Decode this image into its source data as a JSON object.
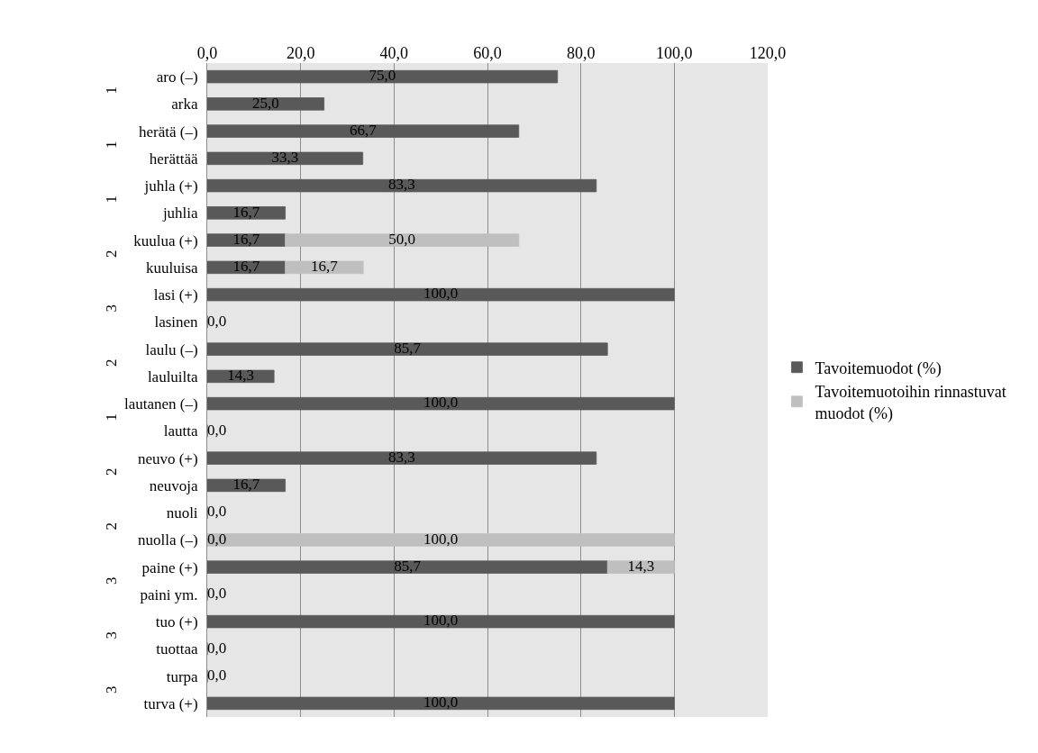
{
  "chart_data": {
    "type": "bar",
    "orientation": "horizontal",
    "stacked": true,
    "categories": [
      "aro (–)",
      "arka",
      "herätä (–)",
      "herättää",
      "juhla (+)",
      "juhlia",
      "kuulua (+)",
      "kuuluisa",
      "lasi (+)",
      "lasinen",
      "laulu (–)",
      "lauluilta",
      "lautanen (–)",
      "lautta",
      "neuvo (+)",
      "neuvoja",
      "nuoli",
      "nuolla (–)",
      "paine (+)",
      "paini ym.",
      "tuo (+)",
      "tuottaa",
      "turpa",
      "turva (+)"
    ],
    "series": [
      {
        "name": "Tavoitemuodot (%)",
        "color": "#595959",
        "values": [
          75.0,
          25.0,
          66.7,
          33.3,
          83.3,
          16.7,
          16.7,
          16.7,
          100.0,
          0.0,
          85.7,
          14.3,
          100.0,
          0.0,
          83.3,
          16.7,
          0.0,
          0.0,
          85.7,
          0.0,
          100.0,
          0.0,
          0.0,
          100.0
        ],
        "value_labels": [
          "75,0",
          "25,0",
          "66,7",
          "33,3",
          "83,3",
          "16,7",
          "16,7",
          "16,7",
          "100,0",
          "0,0",
          "85,7",
          "14,3",
          "100,0",
          "0,0",
          "83,3",
          "16,7",
          "0,0",
          "0,0",
          "85,7",
          "0,0",
          "100,0",
          "0,0",
          "0,0",
          "100,0"
        ]
      },
      {
        "name": "Tavoitemuotoihin rinnastuvat muodot (%)",
        "color": "#bfbfbf",
        "values": [
          null,
          null,
          null,
          null,
          null,
          null,
          50.0,
          16.7,
          null,
          null,
          null,
          null,
          null,
          null,
          null,
          null,
          null,
          100.0,
          14.3,
          null,
          null,
          null,
          null,
          null
        ],
        "value_labels": [
          null,
          null,
          null,
          null,
          null,
          null,
          "50,0",
          "16,7",
          null,
          null,
          null,
          null,
          null,
          null,
          null,
          null,
          null,
          "100,0",
          "14,3",
          null,
          null,
          null,
          null,
          null
        ]
      }
    ],
    "annotations": [
      "1",
      "1",
      "1",
      "2",
      "3",
      "2",
      "1",
      "2",
      "2",
      "3",
      "3",
      "3"
    ],
    "xlim": [
      0,
      120
    ],
    "xticks": [
      {
        "value": 0,
        "label": "0,0"
      },
      {
        "value": 20,
        "label": "20,0"
      },
      {
        "value": 40,
        "label": "40,0"
      },
      {
        "value": 60,
        "label": "60,0"
      },
      {
        "value": 80,
        "label": "80,0"
      },
      {
        "value": 100,
        "label": "100,0"
      },
      {
        "value": 120,
        "label": "120,0"
      }
    ],
    "grid": "x",
    "legend": "right"
  }
}
